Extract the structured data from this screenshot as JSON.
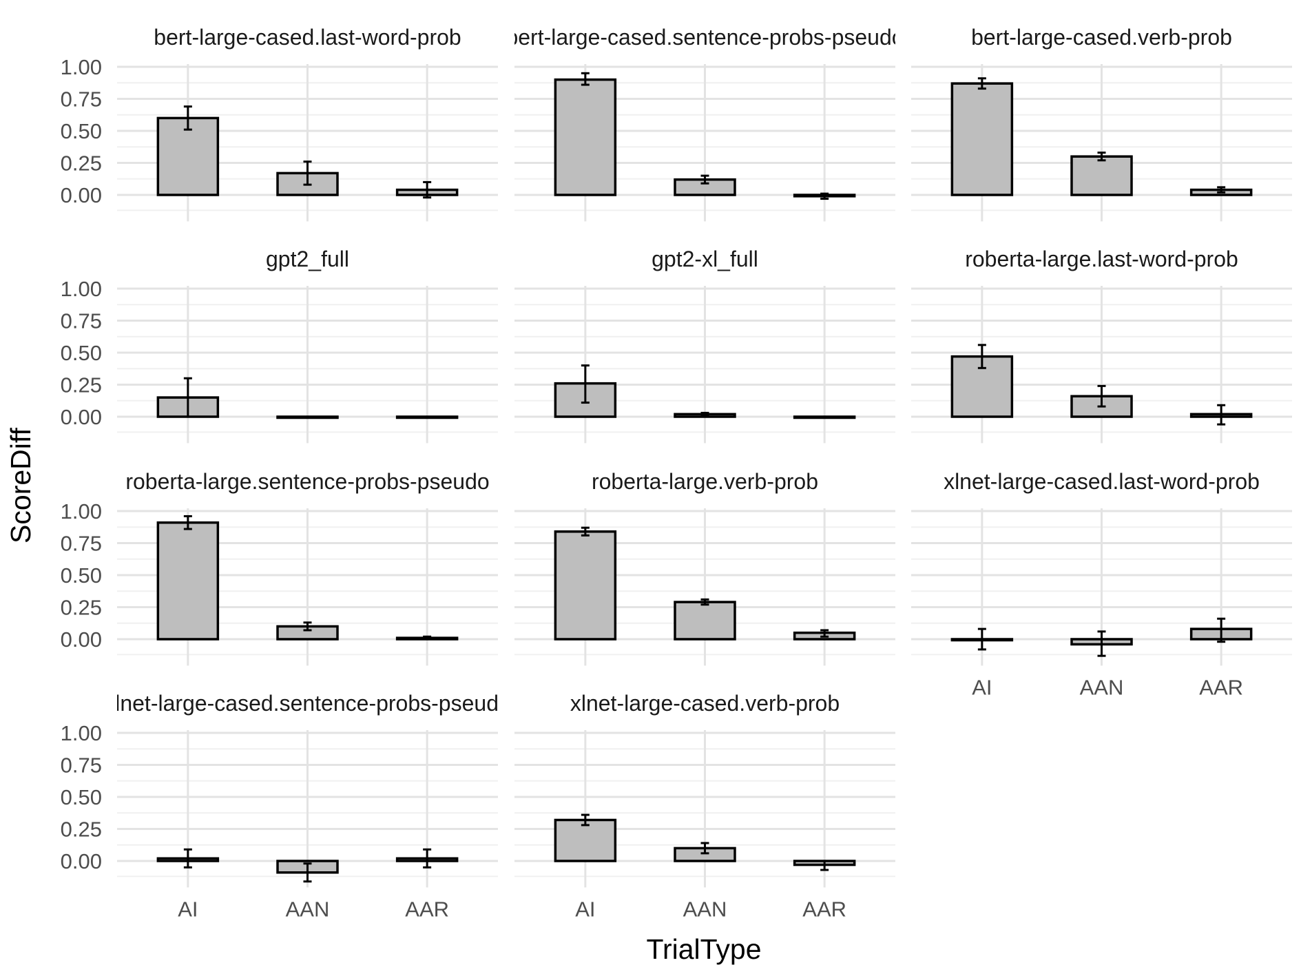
{
  "chart_data": {
    "type": "bar",
    "xlabel": "TrialType",
    "ylabel": "ScoreDiff",
    "categories": [
      "AI",
      "AAN",
      "AAR"
    ],
    "ylim": [
      -0.12,
      1.0
    ],
    "yticks": [
      "1.00",
      "0.75",
      "0.50",
      "0.25",
      "0.00"
    ],
    "ytick_values": [
      1.0,
      0.75,
      0.5,
      0.25,
      0.0
    ],
    "grid": true,
    "bar_color": "#bebebe",
    "panels": [
      {
        "title": "bert-large-cased.last-word-prob",
        "values": [
          0.6,
          0.17,
          0.04
        ],
        "err_low": [
          0.51,
          0.08,
          -0.02
        ],
        "err_high": [
          0.69,
          0.26,
          0.1
        ]
      },
      {
        "title": "bert-large-cased.sentence-probs-pseudo",
        "values": [
          0.9,
          0.12,
          -0.01
        ],
        "err_low": [
          0.86,
          0.09,
          -0.03
        ],
        "err_high": [
          0.95,
          0.15,
          0.01
        ]
      },
      {
        "title": "bert-large-cased.verb-prob",
        "values": [
          0.87,
          0.3,
          0.04
        ],
        "err_low": [
          0.83,
          0.27,
          0.02
        ],
        "err_high": [
          0.91,
          0.33,
          0.06
        ]
      },
      {
        "title": "gpt2_full",
        "values": [
          0.15,
          0.0,
          0.0
        ],
        "err_low": [
          0.0,
          0.0,
          0.0
        ],
        "err_high": [
          0.3,
          0.0,
          0.0
        ]
      },
      {
        "title": "gpt2-xl_full",
        "values": [
          0.26,
          0.02,
          0.0
        ],
        "err_low": [
          0.11,
          0.01,
          0.0
        ],
        "err_high": [
          0.4,
          0.03,
          0.0
        ]
      },
      {
        "title": "roberta-large.last-word-prob",
        "values": [
          0.47,
          0.16,
          0.02
        ],
        "err_low": [
          0.38,
          0.08,
          -0.06
        ],
        "err_high": [
          0.56,
          0.24,
          0.09
        ]
      },
      {
        "title": "roberta-large.sentence-probs-pseudo",
        "values": [
          0.91,
          0.1,
          0.01
        ],
        "err_low": [
          0.86,
          0.07,
          0.0
        ],
        "err_high": [
          0.96,
          0.13,
          0.02
        ]
      },
      {
        "title": "roberta-large.verb-prob",
        "values": [
          0.84,
          0.29,
          0.05
        ],
        "err_low": [
          0.81,
          0.27,
          0.02
        ],
        "err_high": [
          0.87,
          0.31,
          0.07
        ]
      },
      {
        "title": "xlnet-large-cased.last-word-prob",
        "values": [
          0.0,
          -0.04,
          0.08
        ],
        "err_low": [
          -0.08,
          -0.13,
          -0.02
        ],
        "err_high": [
          0.08,
          0.06,
          0.16
        ]
      },
      {
        "title": "xlnet-large-cased.sentence-probs-pseudo",
        "values": [
          0.02,
          -0.09,
          0.02
        ],
        "err_low": [
          -0.05,
          -0.16,
          -0.05
        ],
        "err_high": [
          0.09,
          -0.02,
          0.09
        ]
      },
      {
        "title": "xlnet-large-cased.verb-prob",
        "values": [
          0.32,
          0.1,
          -0.03
        ],
        "err_low": [
          0.28,
          0.06,
          -0.07
        ],
        "err_high": [
          0.36,
          0.14,
          0.0
        ]
      }
    ]
  }
}
